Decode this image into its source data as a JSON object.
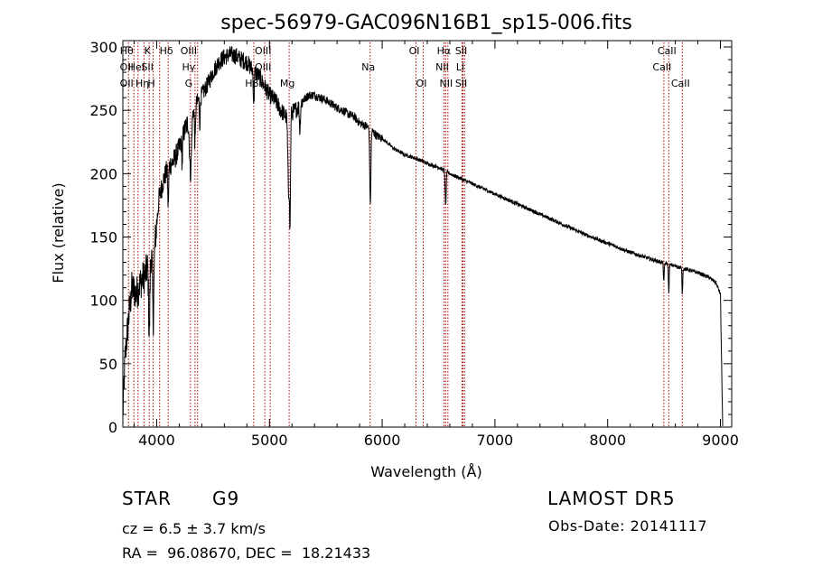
{
  "chart_data": {
    "type": "line",
    "title": "spec-56979-GAC096N16B1_sp15-006.fits",
    "xlabel": "Wavelength (Å)",
    "ylabel": "Flux (relative)",
    "xlim": [
      3700,
      9100
    ],
    "ylim": [
      0,
      305
    ],
    "xticks": [
      4000,
      5000,
      6000,
      7000,
      8000,
      9000
    ],
    "yticks": [
      0,
      50,
      100,
      150,
      200,
      250,
      300
    ],
    "line_color": "#000000",
    "marker_color": "#b00000",
    "continuum": {
      "x": [
        3700,
        3720,
        3750,
        3780,
        3820,
        3860,
        3900,
        3940,
        3980,
        4020,
        4060,
        4100,
        4150,
        4200,
        4250,
        4300,
        4350,
        4400,
        4450,
        4500,
        4550,
        4600,
        4650,
        4700,
        4750,
        4800,
        4850,
        4900,
        4950,
        5000,
        5050,
        5100,
        5150,
        5200,
        5250,
        5300,
        5350,
        5400,
        5450,
        5500,
        5550,
        5600,
        5650,
        5700,
        5750,
        5800,
        5850,
        5900,
        5950,
        6000,
        6100,
        6200,
        6300,
        6400,
        6500,
        6600,
        6700,
        6800,
        6900,
        7000,
        7200,
        7400,
        7600,
        7800,
        8000,
        8200,
        8400,
        8600,
        8800,
        8900,
        8960,
        9000,
        9020
      ],
      "y": [
        10,
        55,
        85,
        110,
        105,
        115,
        120,
        135,
        140,
        180,
        195,
        205,
        210,
        220,
        235,
        245,
        255,
        262,
        270,
        280,
        288,
        292,
        294,
        293,
        290,
        288,
        282,
        278,
        270,
        262,
        258,
        250,
        245,
        248,
        252,
        258,
        262,
        262,
        260,
        258,
        255,
        252,
        250,
        247,
        245,
        240,
        238,
        235,
        230,
        228,
        220,
        215,
        212,
        208,
        205,
        200,
        196,
        192,
        188,
        184,
        176,
        168,
        160,
        152,
        145,
        138,
        132,
        127,
        122,
        118,
        114,
        105,
        0
      ]
    },
    "absorption_lines": [
      {
        "x": 3934,
        "depth": 60,
        "width": 8
      },
      {
        "x": 3969,
        "depth": 55,
        "width": 8
      },
      {
        "x": 4102,
        "depth": 30,
        "width": 6
      },
      {
        "x": 4226,
        "depth": 20,
        "width": 5
      },
      {
        "x": 4300,
        "depth": 45,
        "width": 12
      },
      {
        "x": 4340,
        "depth": 30,
        "width": 6
      },
      {
        "x": 4383,
        "depth": 20,
        "width": 5
      },
      {
        "x": 4861,
        "depth": 25,
        "width": 6
      },
      {
        "x": 5170,
        "depth": 60,
        "width": 10
      },
      {
        "x": 5183,
        "depth": 80,
        "width": 6
      },
      {
        "x": 5270,
        "depth": 20,
        "width": 6
      },
      {
        "x": 5895,
        "depth": 60,
        "width": 7
      },
      {
        "x": 6563,
        "depth": 28,
        "width": 6
      },
      {
        "x": 8498,
        "depth": 15,
        "width": 5
      },
      {
        "x": 8542,
        "depth": 22,
        "width": 5
      },
      {
        "x": 8662,
        "depth": 20,
        "width": 5
      }
    ],
    "line_markers": [
      {
        "x": 3750,
        "labels": [
          "Hθ",
          "OII",
          "OII"
        ]
      },
      {
        "x": 3798,
        "labels": [
          ""
        ]
      },
      {
        "x": 3835,
        "labels": [
          "",
          "HeI"
        ]
      },
      {
        "x": 3889,
        "labels": [
          "",
          "",
          "Hη"
        ]
      },
      {
        "x": 3934,
        "labels": [
          "K",
          "SII"
        ]
      },
      {
        "x": 3969,
        "labels": [
          "",
          "",
          "H"
        ]
      },
      {
        "x": 4026,
        "labels": [
          ""
        ]
      },
      {
        "x": 4102,
        "labels": [
          "Hδ"
        ]
      },
      {
        "x": 4300,
        "labels": [
          "OIII",
          "Hγ",
          "G"
        ]
      },
      {
        "x": 4340,
        "labels": [
          ""
        ]
      },
      {
        "x": 4363,
        "labels": [
          ""
        ]
      },
      {
        "x": 4861,
        "labels": [
          "",
          "",
          "Hβ"
        ]
      },
      {
        "x": 4959,
        "labels": [
          "OIII",
          "OIII"
        ]
      },
      {
        "x": 5007,
        "labels": [
          ""
        ]
      },
      {
        "x": 5175,
        "labels": [
          "",
          "",
          "Mg"
        ]
      },
      {
        "x": 5893,
        "labels": [
          "",
          "Na"
        ]
      },
      {
        "x": 6300,
        "labels": [
          "OI"
        ]
      },
      {
        "x": 6364,
        "labels": [
          "",
          "",
          "OI"
        ]
      },
      {
        "x": 6548,
        "labels": [
          "",
          "NII"
        ]
      },
      {
        "x": 6563,
        "labels": [
          "Hα"
        ]
      },
      {
        "x": 6583,
        "labels": [
          "",
          "",
          "NII"
        ]
      },
      {
        "x": 6708,
        "labels": [
          "",
          "Li"
        ]
      },
      {
        "x": 6717,
        "labels": [
          "SII",
          "",
          "SII"
        ]
      },
      {
        "x": 6731,
        "labels": [
          ""
        ]
      },
      {
        "x": 8498,
        "labels": [
          "",
          "CaII"
        ]
      },
      {
        "x": 8542,
        "labels": [
          "CaII"
        ]
      },
      {
        "x": 8662,
        "labels": [
          "",
          "",
          "CaII"
        ]
      }
    ]
  },
  "info": {
    "class": "STAR",
    "subclass": "G9",
    "survey": "LAMOST DR5",
    "cz": "cz = 6.5 ± 3.7 km/s",
    "obs_date": "Obs-Date: 20141117",
    "radec": "RA =  96.08670, DEC =  18.21433"
  }
}
